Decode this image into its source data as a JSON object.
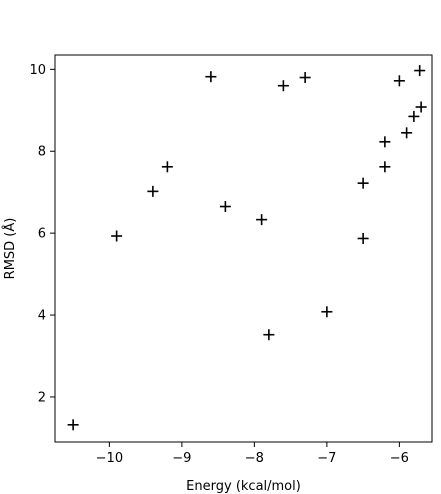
{
  "chart_data": {
    "type": "scatter",
    "title": "",
    "xlabel": "Energy (kcal/mol)",
    "ylabel": "RMSD (Å)",
    "xlim": [
      -10.75,
      -5.55
    ],
    "ylim": [
      0.9,
      10.35
    ],
    "xticks": [
      -10,
      -9,
      -8,
      -7,
      -6
    ],
    "yticks": [
      2,
      4,
      6,
      8,
      10
    ],
    "xtick_labels": [
      "−10",
      "−9",
      "−8",
      "−7",
      "−6"
    ],
    "ytick_labels": [
      "2",
      "4",
      "6",
      "8",
      "10"
    ],
    "grid": false,
    "legend": "none",
    "marker": "plus",
    "marker_color": "#000000",
    "series": [
      {
        "points": [
          {
            "x": -10.5,
            "y": 1.32
          },
          {
            "x": -9.9,
            "y": 5.93
          },
          {
            "x": -9.4,
            "y": 7.02
          },
          {
            "x": -9.2,
            "y": 7.62
          },
          {
            "x": -8.6,
            "y": 9.82
          },
          {
            "x": -8.4,
            "y": 6.65
          },
          {
            "x": -7.9,
            "y": 6.33
          },
          {
            "x": -7.8,
            "y": 3.52
          },
          {
            "x": -7.6,
            "y": 9.6
          },
          {
            "x": -7.3,
            "y": 9.8
          },
          {
            "x": -7.0,
            "y": 4.08
          },
          {
            "x": -6.5,
            "y": 7.22
          },
          {
            "x": -6.5,
            "y": 5.87
          },
          {
            "x": -6.2,
            "y": 8.23
          },
          {
            "x": -6.2,
            "y": 7.62
          },
          {
            "x": -6.0,
            "y": 9.72
          },
          {
            "x": -5.9,
            "y": 8.45
          },
          {
            "x": -5.8,
            "y": 8.85
          },
          {
            "x": -5.7,
            "y": 9.08
          },
          {
            "x": -5.72,
            "y": 9.97
          }
        ]
      }
    ]
  }
}
